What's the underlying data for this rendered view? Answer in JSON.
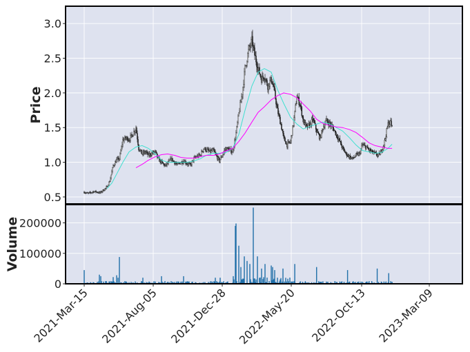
{
  "chart_data": {
    "type": "candlestick",
    "colors": {
      "background": "#dee2ef",
      "grid": "#ffffff",
      "candle": "#222222",
      "volume": "#1f6fa8",
      "ma_short": "#40e0d0",
      "ma_long": "#ff00ff"
    },
    "price_panel": {
      "ylabel": "Price",
      "ylim": [
        0.4,
        3.25
      ],
      "yticks": [
        "0.5",
        "1.0",
        "1.5",
        "2.0",
        "2.5",
        "3.0"
      ],
      "ytick_values": [
        0.5,
        1.0,
        1.5,
        2.0,
        2.5,
        3.0
      ],
      "close_path": [
        [
          0,
          0.57
        ],
        [
          5,
          0.55
        ],
        [
          9,
          0.56
        ],
        [
          14,
          0.58
        ],
        [
          19,
          0.57
        ],
        [
          23,
          0.56
        ],
        [
          28,
          0.6
        ],
        [
          33,
          0.64
        ],
        [
          37,
          0.73
        ],
        [
          42,
          0.95
        ],
        [
          47,
          1.03
        ],
        [
          51,
          1.05
        ],
        [
          56,
          1.32
        ],
        [
          61,
          1.35
        ],
        [
          65,
          1.33
        ],
        [
          70,
          1.4
        ],
        [
          75,
          1.5
        ],
        [
          79,
          1.2
        ],
        [
          84,
          1.12
        ],
        [
          89,
          1.15
        ],
        [
          93,
          1.1
        ],
        [
          98,
          1.13
        ],
        [
          103,
          1.15
        ],
        [
          107,
          1.05
        ],
        [
          112,
          1.0
        ],
        [
          117,
          0.95
        ],
        [
          121,
          0.98
        ],
        [
          126,
          1.05
        ],
        [
          131,
          1.0
        ],
        [
          135,
          0.96
        ],
        [
          140,
          1.0
        ],
        [
          145,
          1.02
        ],
        [
          149,
          0.98
        ],
        [
          154,
          0.96
        ],
        [
          159,
          1.05
        ],
        [
          163,
          1.08
        ],
        [
          168,
          1.1
        ],
        [
          173,
          1.2
        ],
        [
          177,
          1.18
        ],
        [
          182,
          1.15
        ],
        [
          187,
          1.17
        ],
        [
          191,
          1.1
        ],
        [
          196,
          1.02
        ],
        [
          201,
          1.12
        ],
        [
          205,
          1.2
        ],
        [
          210,
          1.18
        ],
        [
          215,
          1.15
        ],
        [
          219,
          1.35
        ],
        [
          224,
          1.7
        ],
        [
          229,
          2.0
        ],
        [
          233,
          2.35
        ],
        [
          238,
          2.6
        ],
        [
          243,
          2.75
        ],
        [
          247,
          2.55
        ],
        [
          252,
          2.35
        ],
        [
          257,
          2.2
        ],
        [
          261,
          2.25
        ],
        [
          266,
          2.1
        ],
        [
          271,
          2.2
        ],
        [
          275,
          2.05
        ],
        [
          280,
          1.75
        ],
        [
          285,
          1.55
        ],
        [
          289,
          1.35
        ],
        [
          294,
          1.25
        ],
        [
          299,
          1.3
        ],
        [
          303,
          1.55
        ],
        [
          308,
          1.95
        ],
        [
          313,
          1.82
        ],
        [
          317,
          1.6
        ],
        [
          322,
          1.5
        ],
        [
          327,
          1.55
        ],
        [
          331,
          1.62
        ],
        [
          336,
          1.45
        ],
        [
          341,
          1.35
        ],
        [
          345,
          1.5
        ],
        [
          350,
          1.6
        ],
        [
          355,
          1.55
        ],
        [
          359,
          1.5
        ],
        [
          364,
          1.4
        ],
        [
          369,
          1.3
        ],
        [
          373,
          1.2
        ],
        [
          378,
          1.12
        ],
        [
          383,
          1.08
        ],
        [
          387,
          1.05
        ],
        [
          392,
          1.1
        ],
        [
          397,
          1.12
        ],
        [
          401,
          1.25
        ],
        [
          406,
          1.22
        ],
        [
          411,
          1.18
        ],
        [
          415,
          1.15
        ],
        [
          420,
          1.12
        ],
        [
          425,
          1.1
        ],
        [
          429,
          1.15
        ],
        [
          434,
          1.3
        ],
        [
          439,
          1.55
        ],
        [
          443,
          1.58
        ],
        [
          445,
          1.5
        ]
      ],
      "ma_short": [
        [
          33,
          0.62
        ],
        [
          40,
          0.7
        ],
        [
          47,
          0.83
        ],
        [
          56,
          1.0
        ],
        [
          65,
          1.15
        ],
        [
          75,
          1.22
        ],
        [
          84,
          1.24
        ],
        [
          93,
          1.2
        ],
        [
          103,
          1.12
        ],
        [
          112,
          1.03
        ],
        [
          121,
          1.0
        ],
        [
          131,
          1.0
        ],
        [
          140,
          1.0
        ],
        [
          149,
          1.0
        ],
        [
          159,
          1.02
        ],
        [
          168,
          1.05
        ],
        [
          177,
          1.1
        ],
        [
          187,
          1.13
        ],
        [
          196,
          1.13
        ],
        [
          205,
          1.14
        ],
        [
          215,
          1.2
        ],
        [
          224,
          1.4
        ],
        [
          233,
          1.75
        ],
        [
          243,
          2.1
        ],
        [
          252,
          2.3
        ],
        [
          261,
          2.35
        ],
        [
          271,
          2.3
        ],
        [
          280,
          2.05
        ],
        [
          289,
          1.85
        ],
        [
          299,
          1.65
        ],
        [
          308,
          1.55
        ],
        [
          317,
          1.48
        ],
        [
          327,
          1.52
        ],
        [
          336,
          1.55
        ],
        [
          345,
          1.58
        ],
        [
          355,
          1.55
        ],
        [
          364,
          1.5
        ],
        [
          373,
          1.45
        ],
        [
          383,
          1.35
        ],
        [
          392,
          1.25
        ],
        [
          401,
          1.17
        ],
        [
          411,
          1.15
        ],
        [
          420,
          1.13
        ],
        [
          429,
          1.14
        ],
        [
          439,
          1.2
        ],
        [
          445,
          1.26
        ]
      ],
      "ma_long": [
        [
          75,
          0.92
        ],
        [
          84,
          0.97
        ],
        [
          93,
          1.03
        ],
        [
          103,
          1.08
        ],
        [
          112,
          1.11
        ],
        [
          121,
          1.12
        ],
        [
          131,
          1.1
        ],
        [
          140,
          1.07
        ],
        [
          149,
          1.06
        ],
        [
          159,
          1.06
        ],
        [
          168,
          1.08
        ],
        [
          177,
          1.1
        ],
        [
          187,
          1.1
        ],
        [
          196,
          1.12
        ],
        [
          205,
          1.16
        ],
        [
          215,
          1.2
        ],
        [
          224,
          1.3
        ],
        [
          233,
          1.42
        ],
        [
          243,
          1.58
        ],
        [
          252,
          1.72
        ],
        [
          261,
          1.8
        ],
        [
          271,
          1.9
        ],
        [
          280,
          1.96
        ],
        [
          289,
          2.0
        ],
        [
          299,
          1.98
        ],
        [
          308,
          1.93
        ],
        [
          317,
          1.84
        ],
        [
          327,
          1.74
        ],
        [
          336,
          1.62
        ],
        [
          345,
          1.56
        ],
        [
          355,
          1.53
        ],
        [
          364,
          1.51
        ],
        [
          373,
          1.5
        ],
        [
          383,
          1.47
        ],
        [
          392,
          1.43
        ],
        [
          401,
          1.36
        ],
        [
          411,
          1.28
        ],
        [
          420,
          1.24
        ],
        [
          429,
          1.22
        ],
        [
          439,
          1.2
        ],
        [
          445,
          1.2
        ]
      ]
    },
    "volume_panel": {
      "ylabel": "Volume",
      "ylim": [
        0,
        260000
      ],
      "yticks": [
        "0",
        "100000",
        "200000"
      ],
      "ytick_values": [
        0,
        100000,
        200000
      ],
      "spikes": [
        [
          0,
          45000
        ],
        [
          22,
          30000
        ],
        [
          24,
          25000
        ],
        [
          42,
          22000
        ],
        [
          47,
          28000
        ],
        [
          49,
          20000
        ],
        [
          51,
          88000
        ],
        [
          85,
          20000
        ],
        [
          112,
          25000
        ],
        [
          144,
          25000
        ],
        [
          190,
          20000
        ],
        [
          197,
          20000
        ],
        [
          216,
          25000
        ],
        [
          219,
          190000
        ],
        [
          220,
          198000
        ],
        [
          224,
          125000
        ],
        [
          227,
          55000
        ],
        [
          232,
          90000
        ],
        [
          236,
          75000
        ],
        [
          240,
          65000
        ],
        [
          245,
          250000
        ],
        [
          251,
          90000
        ],
        [
          257,
          50000
        ],
        [
          262,
          65000
        ],
        [
          271,
          60000
        ],
        [
          273,
          55000
        ],
        [
          276,
          45000
        ],
        [
          288,
          50000
        ],
        [
          305,
          65000
        ],
        [
          336,
          55000
        ],
        [
          380,
          45000
        ],
        [
          423,
          50000
        ],
        [
          440,
          35000
        ]
      ]
    },
    "x": {
      "range": [
        -12,
        457
      ],
      "ticks": [
        "2021-Mar-15",
        "2021-Aug-05",
        "2021-Dec-28",
        "2022-May-20",
        "2022-Oct-13",
        "2023-Mar-09"
      ],
      "tick_positions": [
        0,
        100,
        200,
        300,
        400,
        500
      ]
    }
  }
}
